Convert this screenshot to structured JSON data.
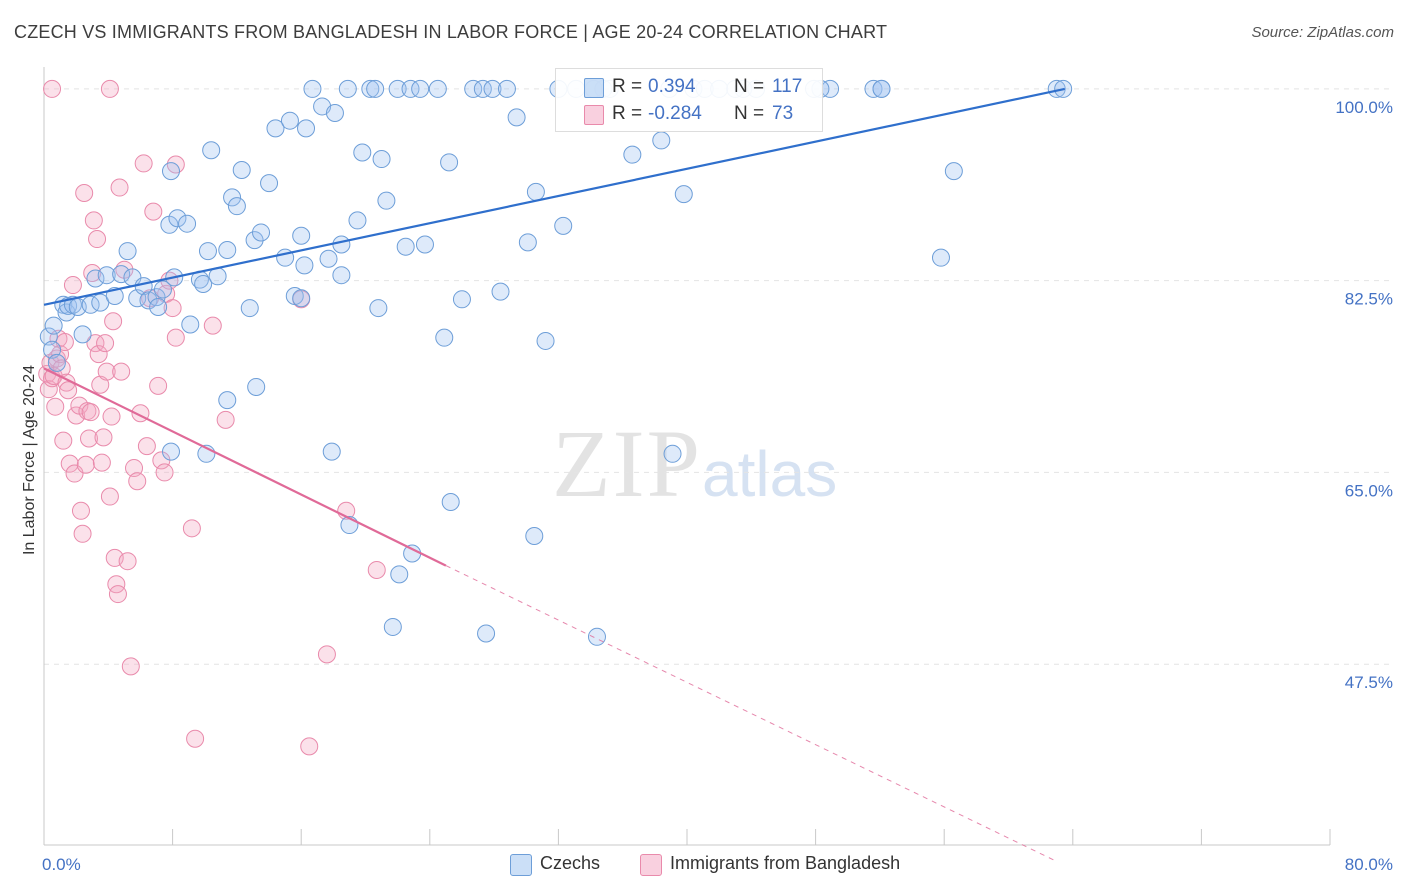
{
  "title": "CZECH VS IMMIGRANTS FROM BANGLADESH IN LABOR FORCE | AGE 20-24 CORRELATION CHART",
  "source": "Source: ZipAtlas.com",
  "watermark": {
    "zip": "ZIP",
    "atlas": "atlas"
  },
  "colors": {
    "czech_fill": "rgba(160,196,240,0.35)",
    "czech_stroke": "#6d9ed8",
    "czech_line": "#2f6fcc",
    "bangladesh_fill": "rgba(244,170,196,0.35)",
    "bangladesh_stroke": "#e98aab",
    "bangladesh_line": "#e06a98",
    "axis_text": "#4472c4",
    "grid": "#e4e4e4"
  },
  "legend_top": [
    {
      "r_label": "R =",
      "r_value": "0.394",
      "n_label": "N =",
      "n_value": "117"
    },
    {
      "r_label": "R =",
      "r_value": "-0.284",
      "n_label": "N =",
      "n_value": "73"
    }
  ],
  "legend_bottom": [
    {
      "label": "Czechs"
    },
    {
      "label": "Immigrants from Bangladesh"
    }
  ],
  "chart_data": {
    "type": "scatter",
    "title": "CZECH VS IMMIGRANTS FROM BANGLADESH IN LABOR FORCE | AGE 20-24 CORRELATION CHART",
    "xlabel": "",
    "ylabel": "In Labor Force | Age 20-24",
    "xlim": [
      0,
      80
    ],
    "ylim": [
      31,
      102
    ],
    "x_ticks_labeled": [
      "0.0%",
      "80.0%"
    ],
    "x_tick_positions": [
      0,
      8,
      16,
      24,
      32,
      40,
      48,
      56,
      64,
      72,
      80
    ],
    "y_ticks": [
      47.5,
      65.0,
      82.5,
      100.0
    ],
    "y_tick_labels": [
      "47.5%",
      "65.0%",
      "82.5%",
      "100.0%"
    ],
    "grid": "horizontal dashed",
    "legend_placement": "bottom-center",
    "series": [
      {
        "name": "Czechs",
        "R": 0.394,
        "N": 117,
        "trend": {
          "x": [
            0,
            63.5
          ],
          "y": [
            80.3,
            100.0
          ],
          "dashed_after": null
        },
        "points": [
          [
            0.3,
            77.4
          ],
          [
            0.5,
            76.2
          ],
          [
            0.6,
            78.4
          ],
          [
            0.8,
            75.0
          ],
          [
            1.2,
            80.3
          ],
          [
            1.4,
            79.6
          ],
          [
            1.5,
            80.2
          ],
          [
            1.8,
            80.3
          ],
          [
            2.1,
            80.1
          ],
          [
            2.4,
            77.6
          ],
          [
            2.9,
            80.3
          ],
          [
            3.2,
            82.7
          ],
          [
            3.5,
            80.5
          ],
          [
            3.9,
            83.0
          ],
          [
            4.4,
            81.1
          ],
          [
            4.8,
            83.1
          ],
          [
            5.2,
            85.2
          ],
          [
            5.5,
            82.8
          ],
          [
            5.8,
            80.9
          ],
          [
            6.2,
            82.0
          ],
          [
            6.5,
            80.7
          ],
          [
            7.0,
            81.0
          ],
          [
            7.1,
            80.1
          ],
          [
            7.4,
            81.7
          ],
          [
            7.8,
            87.6
          ],
          [
            7.9,
            92.5
          ],
          [
            8.1,
            82.8
          ],
          [
            8.3,
            88.2
          ],
          [
            8.9,
            87.7
          ],
          [
            9.1,
            78.5
          ],
          [
            9.7,
            82.6
          ],
          [
            9.9,
            82.2
          ],
          [
            10.2,
            85.2
          ],
          [
            10.4,
            94.4
          ],
          [
            10.8,
            82.9
          ],
          [
            11.4,
            85.3
          ],
          [
            11.7,
            90.1
          ],
          [
            12.0,
            89.3
          ],
          [
            12.3,
            92.6
          ],
          [
            12.8,
            80.0
          ],
          [
            13.1,
            86.2
          ],
          [
            13.5,
            86.9
          ],
          [
            14.0,
            91.4
          ],
          [
            14.4,
            96.4
          ],
          [
            15.0,
            84.6
          ],
          [
            15.3,
            97.1
          ],
          [
            15.6,
            81.1
          ],
          [
            16.0,
            86.6
          ],
          [
            16.2,
            83.9
          ],
          [
            16.3,
            96.4
          ],
          [
            16.7,
            100.0
          ],
          [
            17.3,
            98.4
          ],
          [
            17.7,
            84.5
          ],
          [
            18.1,
            97.8
          ],
          [
            18.5,
            85.8
          ],
          [
            18.9,
            100.0
          ],
          [
            19.5,
            88.0
          ],
          [
            19.8,
            94.2
          ],
          [
            20.3,
            100.0
          ],
          [
            20.8,
            80.0
          ],
          [
            21.0,
            93.6
          ],
          [
            21.3,
            89.8
          ],
          [
            22.0,
            100.0
          ],
          [
            22.5,
            85.6
          ],
          [
            22.8,
            100.0
          ],
          [
            23.4,
            100.0
          ],
          [
            23.7,
            85.8
          ],
          [
            24.5,
            100.0
          ],
          [
            24.9,
            77.3
          ],
          [
            25.2,
            93.3
          ],
          [
            26.0,
            80.8
          ],
          [
            26.7,
            100.0
          ],
          [
            27.3,
            100.0
          ],
          [
            27.9,
            100.0
          ],
          [
            28.4,
            81.5
          ],
          [
            28.8,
            100.0
          ],
          [
            29.4,
            97.4
          ],
          [
            30.1,
            86.0
          ],
          [
            30.6,
            90.6
          ],
          [
            31.2,
            77.0
          ],
          [
            32.0,
            100.0
          ],
          [
            32.3,
            87.5
          ],
          [
            33.1,
            100.0
          ],
          [
            34.2,
            100.0
          ],
          [
            34.8,
            100.0
          ],
          [
            35.2,
            100.0
          ],
          [
            36.6,
            94.0
          ],
          [
            38.4,
            95.3
          ],
          [
            38.9,
            100.0
          ],
          [
            39.8,
            90.4
          ],
          [
            40.4,
            100.0
          ],
          [
            41.1,
            100.0
          ],
          [
            42.0,
            100.0
          ],
          [
            43.0,
            100.0
          ],
          [
            43.5,
            100.0
          ],
          [
            48.9,
            100.0
          ],
          [
            51.6,
            100.0
          ],
          [
            52.1,
            100.0
          ],
          [
            56.6,
            92.5
          ],
          [
            63.0,
            100.0
          ],
          [
            63.4,
            100.0
          ],
          [
            52.1,
            100.0
          ],
          [
            48.3,
            100.0
          ],
          [
            47.9,
            100.0
          ],
          [
            44.3,
            100.0
          ],
          [
            20.6,
            100.0
          ],
          [
            55.8,
            84.6
          ],
          [
            11.4,
            71.6
          ],
          [
            13.2,
            72.8
          ],
          [
            16.0,
            80.9
          ],
          [
            17.9,
            66.9
          ],
          [
            18.5,
            83.0
          ],
          [
            7.9,
            66.9
          ],
          [
            10.1,
            66.7
          ],
          [
            19.0,
            60.2
          ],
          [
            25.3,
            62.3
          ],
          [
            22.9,
            57.6
          ],
          [
            30.5,
            59.2
          ],
          [
            21.7,
            50.9
          ],
          [
            27.5,
            50.3
          ],
          [
            34.4,
            50.0
          ],
          [
            39.1,
            66.7
          ],
          [
            22.1,
            55.7
          ]
        ]
      },
      {
        "name": "Immigrants from Bangladesh",
        "R": -0.284,
        "N": 73,
        "trend": {
          "x": [
            0,
            25
          ],
          "y": [
            74.5,
            56.5
          ],
          "dashed_to": [
            63,
            29.5
          ]
        },
        "points": [
          [
            0.2,
            74.0
          ],
          [
            0.3,
            72.6
          ],
          [
            0.4,
            75.0
          ],
          [
            0.5,
            73.6
          ],
          [
            0.6,
            73.8
          ],
          [
            0.7,
            71.0
          ],
          [
            0.8,
            75.4
          ],
          [
            0.9,
            77.2
          ],
          [
            1.0,
            75.8
          ],
          [
            1.1,
            74.5
          ],
          [
            1.2,
            67.9
          ],
          [
            1.3,
            76.9
          ],
          [
            1.4,
            73.2
          ],
          [
            1.5,
            72.5
          ],
          [
            1.6,
            65.8
          ],
          [
            1.8,
            82.1
          ],
          [
            1.9,
            64.9
          ],
          [
            2.0,
            70.2
          ],
          [
            2.2,
            71.1
          ],
          [
            2.3,
            61.5
          ],
          [
            2.4,
            59.4
          ],
          [
            2.5,
            90.5
          ],
          [
            2.6,
            65.7
          ],
          [
            2.7,
            70.6
          ],
          [
            2.8,
            68.1
          ],
          [
            2.9,
            70.5
          ],
          [
            3.0,
            83.2
          ],
          [
            3.1,
            88.0
          ],
          [
            3.2,
            76.8
          ],
          [
            3.3,
            86.3
          ],
          [
            3.4,
            75.8
          ],
          [
            3.5,
            73.0
          ],
          [
            3.6,
            65.9
          ],
          [
            3.7,
            68.2
          ],
          [
            3.8,
            76.8
          ],
          [
            3.9,
            74.2
          ],
          [
            4.1,
            62.8
          ],
          [
            4.2,
            70.1
          ],
          [
            4.3,
            78.8
          ],
          [
            4.4,
            57.2
          ],
          [
            4.5,
            54.8
          ],
          [
            4.6,
            53.9
          ],
          [
            4.7,
            91.0
          ],
          [
            4.8,
            74.2
          ],
          [
            5.0,
            83.5
          ],
          [
            5.2,
            56.9
          ],
          [
            5.4,
            47.3
          ],
          [
            5.6,
            65.4
          ],
          [
            5.8,
            64.2
          ],
          [
            6.0,
            70.4
          ],
          [
            6.2,
            93.2
          ],
          [
            6.4,
            67.4
          ],
          [
            6.6,
            80.9
          ],
          [
            6.8,
            88.8
          ],
          [
            7.1,
            72.9
          ],
          [
            7.3,
            66.1
          ],
          [
            7.5,
            65.0
          ],
          [
            7.6,
            81.3
          ],
          [
            7.8,
            82.5
          ],
          [
            8.0,
            80.0
          ],
          [
            8.2,
            93.1
          ],
          [
            9.2,
            59.9
          ],
          [
            9.4,
            40.7
          ],
          [
            10.5,
            78.4
          ],
          [
            11.3,
            69.8
          ],
          [
            16.0,
            80.8
          ],
          [
            16.5,
            40.0
          ],
          [
            17.6,
            48.4
          ],
          [
            18.8,
            61.5
          ],
          [
            20.7,
            56.1
          ],
          [
            0.5,
            100.0
          ],
          [
            4.1,
            100.0
          ],
          [
            8.2,
            77.3
          ]
        ]
      }
    ]
  }
}
